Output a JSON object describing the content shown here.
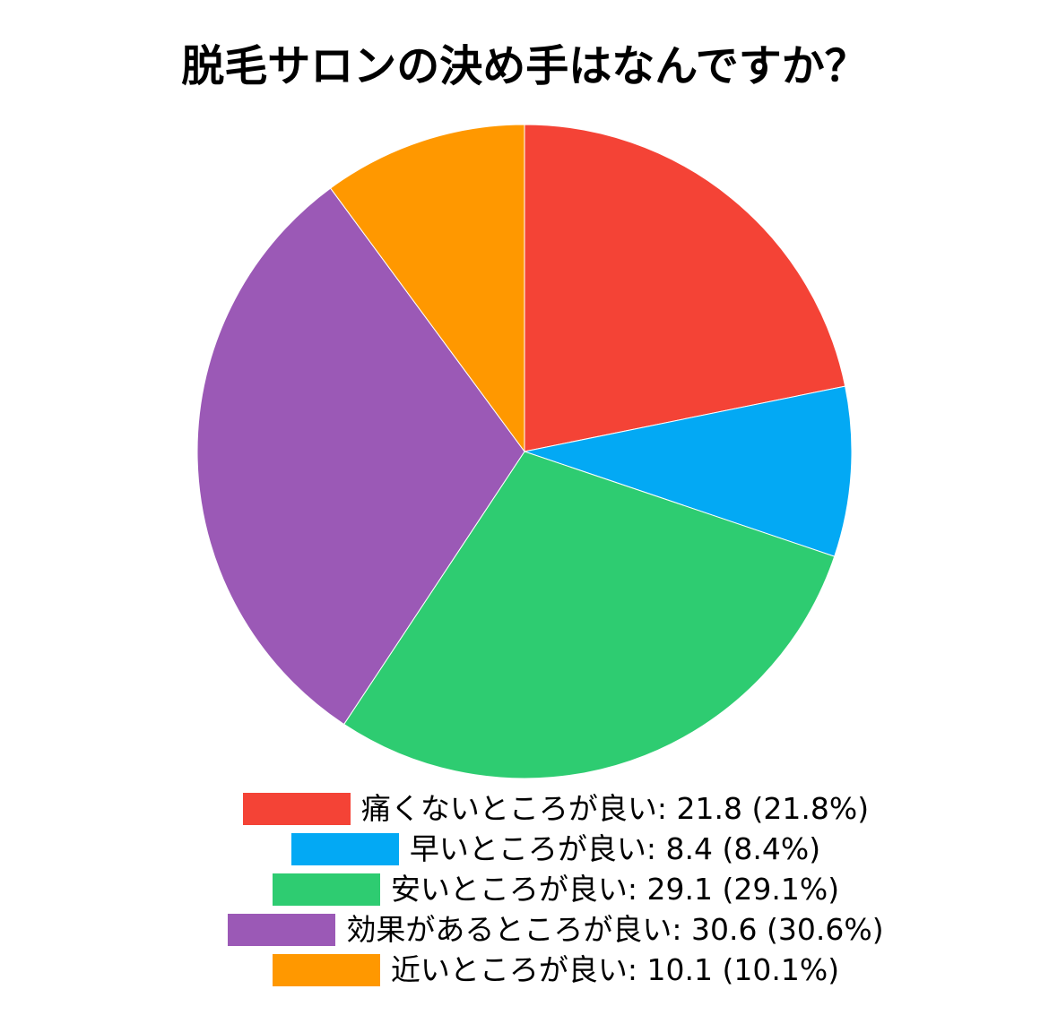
{
  "chart_data": {
    "type": "pie",
    "title": "脱毛サロンの決め手はなんですか？",
    "legend_position": "bottom",
    "slices": [
      {
        "label": "痛くないところが良い",
        "value": 21.8,
        "percent": "21.8%",
        "color": "#f44336",
        "legend_text": "痛くないところが良い: 21.8 (21.8%)"
      },
      {
        "label": "早いところが良い",
        "value": 8.4,
        "percent": "8.4%",
        "color": "#03a9f4",
        "legend_text": "早いところが良い: 8.4 (8.4%)"
      },
      {
        "label": "安いところが良い",
        "value": 29.1,
        "percent": "29.1%",
        "color": "#2ecc71",
        "legend_text": "安いところが良い: 29.1 (29.1%)"
      },
      {
        "label": "効果があるところが良い",
        "value": 30.6,
        "percent": "30.6%",
        "color": "#9b59b6",
        "legend_text": "効果があるところが良い: 30.6 (30.6%)"
      },
      {
        "label": "近いところが良い",
        "value": 10.1,
        "percent": "10.1%",
        "color": "#ff9800",
        "legend_text": "近いところが良い: 10.1 (10.1%)"
      }
    ]
  }
}
